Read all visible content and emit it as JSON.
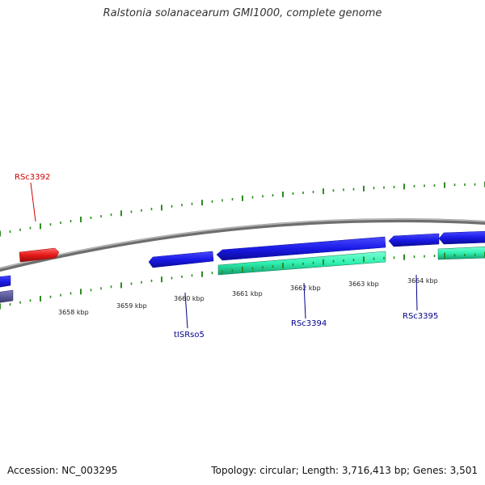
{
  "title": "Ralstonia solanacearum GMI1000, complete genome",
  "footer": {
    "accession_label": "Accession:",
    "accession": "NC_003295",
    "topology_label": "Topology:",
    "topology": "circular",
    "length_label": "Length:",
    "length": "3,716,413 bp",
    "genes_label": "Genes:",
    "genes": "3,501"
  },
  "colors": {
    "backbone": "#8a8a8a",
    "tick": "#2e8b22",
    "forward_gene": "#1a1ae6",
    "reverse_gene": "#1a1ae6",
    "rna_feature": "#2ef0b0",
    "selected_gene": "#e61a1a",
    "gene_label": "#00008b",
    "selected_label": "#cc0000",
    "dark_feature": "#4b4b8f"
  },
  "scale": {
    "unit": "kbp",
    "tick_labels": [
      "3658 kbp",
      "3659 kbp",
      "3660 kbp",
      "3661 kbp",
      "3662 kbp",
      "3663 kbp",
      "3664 kbp"
    ]
  },
  "gene_labels": [
    {
      "name": "RSc3392",
      "kind": "selected"
    },
    {
      "name": "tISRso5",
      "kind": "normal"
    },
    {
      "name": "RSc3394",
      "kind": "normal"
    },
    {
      "name": "RSc3395",
      "kind": "normal"
    }
  ]
}
